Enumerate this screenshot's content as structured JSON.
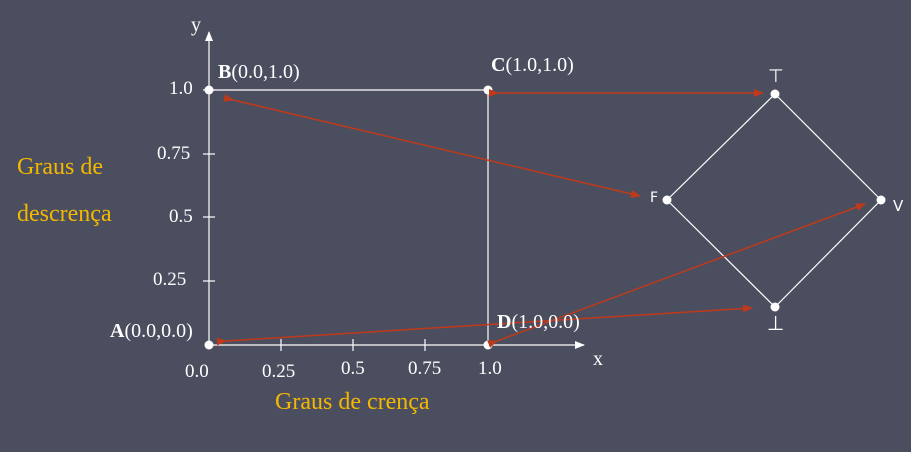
{
  "y_axis_letter": "y",
  "x_axis_letter": "x",
  "y_ticks": [
    "1.0",
    "0.75",
    "0.5",
    "0.25"
  ],
  "x_ticks": [
    "0.0",
    "0.25",
    "0.5",
    "0.75",
    "1.0"
  ],
  "y_label_line1": "Graus de",
  "y_label_line2": "descrença",
  "x_label": "Graus de crença",
  "points": {
    "A": {
      "letter": "A",
      "coords": "(0.0,0.0)"
    },
    "B": {
      "letter": "B",
      "coords": "(0.0,1.0)"
    },
    "C": {
      "letter": "C",
      "coords": "(1.0,1.0)"
    },
    "D": {
      "letter": "D",
      "coords": "(1.0,0.0)"
    }
  },
  "lattice": {
    "top": "⊤",
    "bottom": "⊥",
    "left": "F",
    "right": "V"
  },
  "colors": {
    "background": "#4b4e5e",
    "line": "#ffffff",
    "arrow": "#c0391b",
    "label": "#f5b800"
  }
}
